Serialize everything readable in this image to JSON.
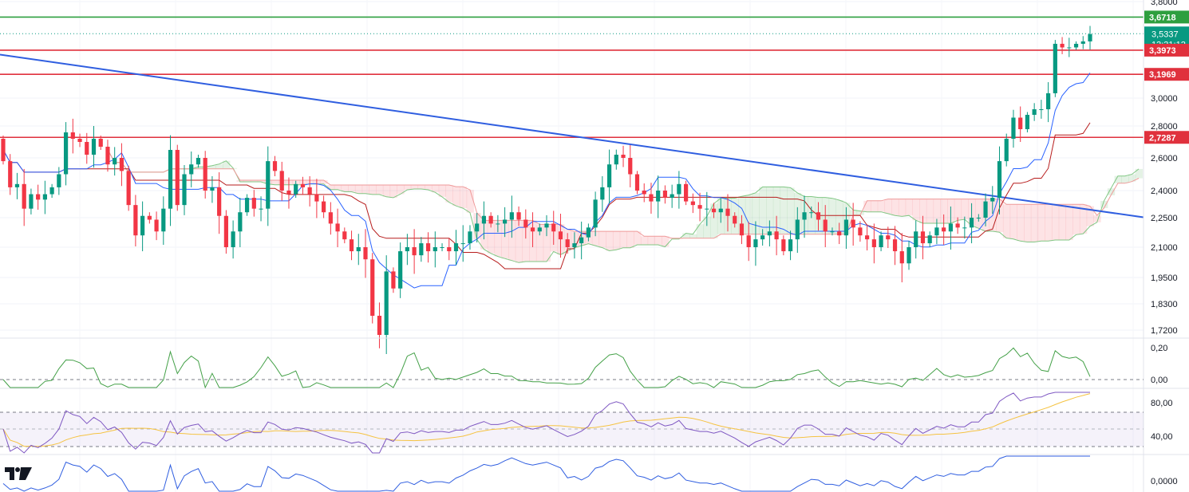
{
  "chart_data": {
    "type": "candlestick",
    "main_price_axis_ticks": [
      "3,8000",
      "3,0000",
      "2,8000",
      "2,6000",
      "2,4000",
      "2,2500",
      "2,1000",
      "1,9500",
      "1,8300",
      "1,7200"
    ],
    "price_axis_ticks_values": [
      3.8,
      3.0,
      2.8,
      2.6,
      2.4,
      2.25,
      2.1,
      1.95,
      1.83,
      1.72
    ],
    "levels": [
      {
        "value": 3.6718,
        "label": "3,6718",
        "color": "#2e9f3f",
        "style": "solid"
      },
      {
        "value": 3.5337,
        "label": "3,5337",
        "countdown": "13:31:12",
        "color": "#089981",
        "style": "dotted"
      },
      {
        "value": 3.3973,
        "label": "3,3973",
        "color": "#e0313d",
        "style": "solid"
      },
      {
        "value": 3.1969,
        "label": "3,1969",
        "color": "#e0313d",
        "style": "solid"
      },
      {
        "value": 2.7287,
        "label": "2,7287",
        "color": "#e0313d",
        "style": "solid"
      }
    ],
    "trendline": {
      "from_price": 3.36,
      "to_price": 2.252,
      "color": "#2f5ee0"
    },
    "candles": {
      "open": [
        2.72,
        2.58,
        2.42,
        2.44,
        2.3,
        2.38,
        2.35,
        2.38,
        2.42,
        2.5,
        2.76,
        2.72,
        2.7,
        2.62,
        2.72,
        2.67,
        2.56,
        2.6,
        2.52,
        2.32,
        2.16,
        2.26,
        2.24,
        2.18,
        2.3,
        2.65,
        2.32,
        2.5,
        2.56,
        2.6,
        2.4,
        2.42,
        2.26,
        2.1,
        2.18,
        2.28,
        2.36,
        2.3,
        2.3,
        2.58,
        2.52,
        2.4,
        2.38,
        2.44,
        2.42,
        2.38,
        2.34,
        2.28,
        2.22,
        2.18,
        2.14,
        2.08,
        2.1,
        2.04,
        1.78,
        1.7,
        1.98,
        1.9,
        2.08,
        2.1,
        2.06,
        2.12,
        2.08,
        2.1,
        2.1,
        2.08,
        2.12,
        2.12,
        2.18,
        2.22,
        2.26,
        2.22,
        2.22,
        2.24,
        2.28,
        2.24,
        2.2,
        2.18,
        2.2,
        2.22,
        2.18,
        2.14,
        2.1,
        2.12,
        2.15,
        2.2,
        2.35,
        2.42,
        2.56,
        2.62,
        2.6,
        2.5,
        2.4,
        2.38,
        2.34,
        2.4,
        2.36,
        2.38,
        2.44,
        2.34,
        2.32,
        2.3,
        2.3,
        2.28,
        2.3,
        2.26,
        2.22,
        2.16,
        2.1,
        2.14,
        2.16,
        2.18,
        2.14,
        2.08,
        2.14,
        2.24,
        2.28,
        2.28,
        2.24,
        2.18,
        2.18,
        2.16,
        2.24,
        2.2,
        2.16,
        2.14,
        2.1,
        2.16,
        2.14,
        2.08,
        2.02,
        2.1,
        2.18,
        2.12,
        2.16,
        2.2,
        2.18,
        2.22,
        2.2,
        2.2,
        2.25,
        2.25,
        2.34,
        2.36,
        2.58,
        2.72,
        2.86,
        2.78,
        2.88,
        2.92,
        2.92,
        3.04,
        3.45,
        3.42,
        3.42,
        3.45,
        3.47
      ],
      "close": [
        2.58,
        2.42,
        2.44,
        2.3,
        2.38,
        2.35,
        2.38,
        2.42,
        2.5,
        2.76,
        2.72,
        2.7,
        2.62,
        2.72,
        2.67,
        2.56,
        2.6,
        2.52,
        2.32,
        2.16,
        2.26,
        2.24,
        2.18,
        2.3,
        2.65,
        2.32,
        2.5,
        2.56,
        2.6,
        2.4,
        2.42,
        2.26,
        2.1,
        2.18,
        2.28,
        2.36,
        2.3,
        2.3,
        2.58,
        2.52,
        2.4,
        2.38,
        2.44,
        2.42,
        2.38,
        2.34,
        2.28,
        2.22,
        2.18,
        2.14,
        2.08,
        2.1,
        2.04,
        1.78,
        1.7,
        1.98,
        1.9,
        2.08,
        2.1,
        2.06,
        2.12,
        2.08,
        2.1,
        2.1,
        2.08,
        2.12,
        2.12,
        2.18,
        2.22,
        2.26,
        2.22,
        2.22,
        2.24,
        2.28,
        2.24,
        2.2,
        2.18,
        2.2,
        2.22,
        2.18,
        2.14,
        2.1,
        2.12,
        2.15,
        2.2,
        2.35,
        2.42,
        2.56,
        2.62,
        2.6,
        2.5,
        2.4,
        2.38,
        2.34,
        2.4,
        2.36,
        2.38,
        2.44,
        2.34,
        2.32,
        2.3,
        2.3,
        2.28,
        2.3,
        2.26,
        2.22,
        2.16,
        2.1,
        2.14,
        2.16,
        2.18,
        2.14,
        2.08,
        2.14,
        2.24,
        2.28,
        2.28,
        2.24,
        2.18,
        2.18,
        2.16,
        2.24,
        2.2,
        2.16,
        2.14,
        2.1,
        2.16,
        2.14,
        2.08,
        2.02,
        2.1,
        2.18,
        2.12,
        2.16,
        2.2,
        2.18,
        2.22,
        2.2,
        2.2,
        2.25,
        2.25,
        2.34,
        2.36,
        2.58,
        2.72,
        2.86,
        2.78,
        2.88,
        2.92,
        2.92,
        3.04,
        3.45,
        3.42,
        3.42,
        3.45,
        3.47,
        3.53
      ]
    }
  },
  "indicators": [
    {
      "name": "momentum",
      "ticks": [
        "0,20",
        "0,00"
      ]
    },
    {
      "name": "rsi",
      "ticks": [
        "80,00",
        "40,00"
      ]
    },
    {
      "name": "oscillator",
      "ticks": [
        "0,0000"
      ]
    }
  ],
  "colors": {
    "up": "#089981",
    "down": "#f23645",
    "kijun": "#b71c1c",
    "tenkan": "#2962ff",
    "rsi": "#7e57c2",
    "rsi_ma": "#f5c342",
    "momentum": "#43a047",
    "osc": "#2f5ee0"
  }
}
